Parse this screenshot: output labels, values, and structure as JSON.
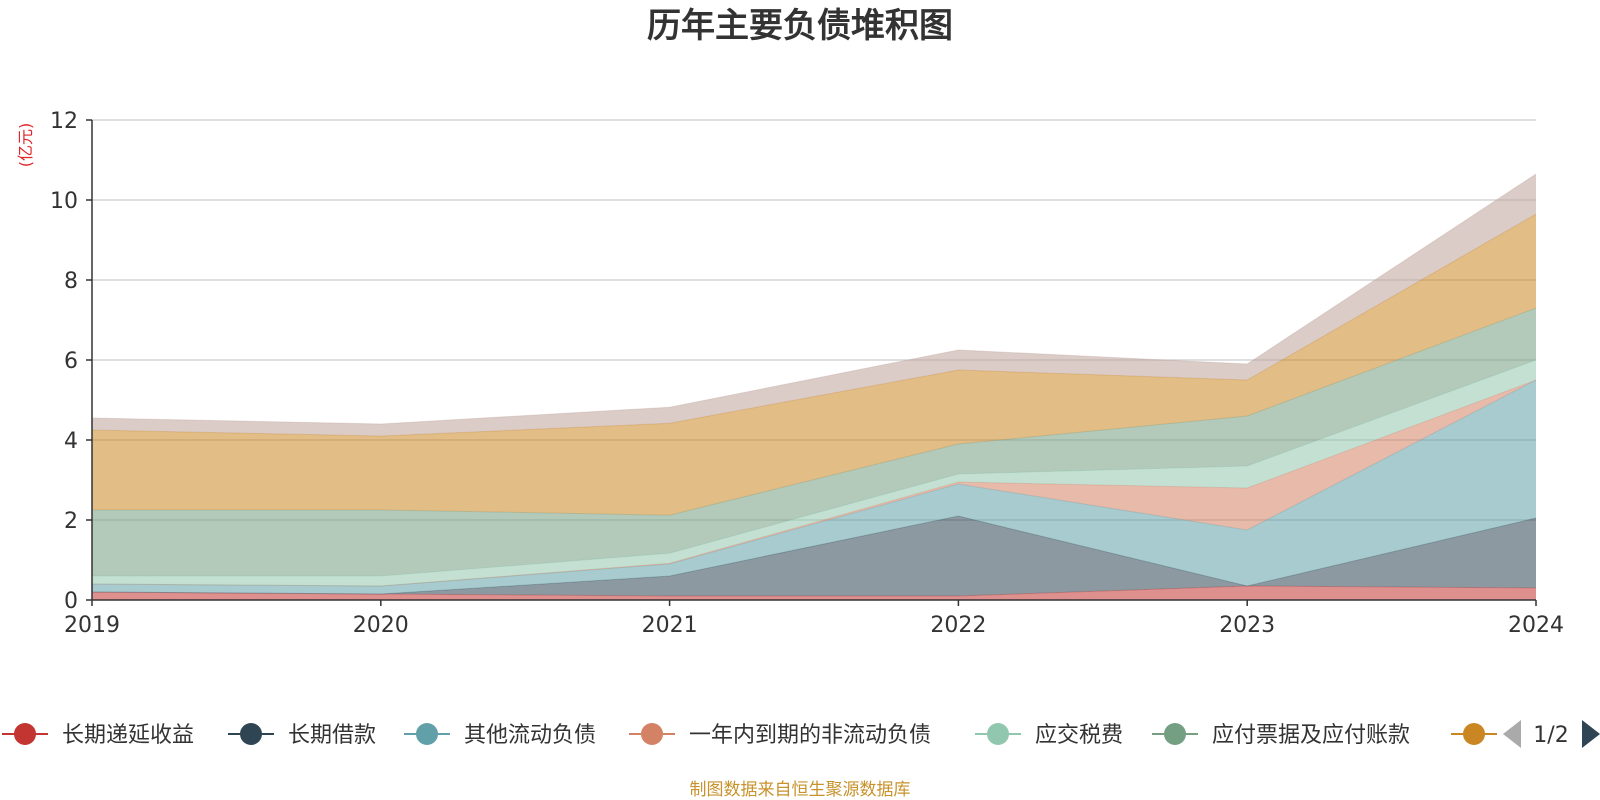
{
  "chart_data": {
    "type": "area",
    "stacked": true,
    "title": "历年主要负债堆积图",
    "ylabel": "(亿元)",
    "xlabel": "",
    "x": [
      "2019",
      "2020",
      "2021",
      "2022",
      "2023",
      "2024"
    ],
    "ylim": [
      0,
      12
    ],
    "yticks": [
      "0",
      "2",
      "4",
      "6",
      "8",
      "10",
      "12"
    ],
    "grid": true,
    "legend_position": "bottom",
    "series": [
      {
        "name": "长期递延收益",
        "color": "#c23531",
        "values": [
          0.2,
          0.15,
          0.1,
          0.1,
          0.35,
          0.3
        ]
      },
      {
        "name": "长期借款",
        "color": "#2f4554",
        "values": [
          0.0,
          0.0,
          0.5,
          2.0,
          0.0,
          1.75
        ]
      },
      {
        "name": "其他流动负债",
        "color": "#61a0a8",
        "values": [
          0.2,
          0.2,
          0.3,
          0.8,
          1.4,
          3.45
        ]
      },
      {
        "name": "一年内到期的非流动负债",
        "color": "#d48265",
        "values": [
          0.0,
          0.0,
          0.02,
          0.05,
          1.05,
          0.0
        ]
      },
      {
        "name": "应交税费",
        "color": "#91c7ae",
        "values": [
          0.2,
          0.25,
          0.25,
          0.2,
          0.55,
          0.5
        ]
      },
      {
        "name": "应付票据及应付账款",
        "color": "#749f83",
        "values": [
          1.65,
          1.65,
          0.95,
          0.75,
          1.25,
          1.3
        ]
      },
      {
        "name": "",
        "color": "#ca8622",
        "values": [
          2.0,
          1.85,
          2.3,
          1.85,
          0.9,
          2.35
        ]
      },
      {
        "name": "",
        "color": "#bda29a",
        "values": [
          0.3,
          0.3,
          0.4,
          0.5,
          0.4,
          1.0
        ]
      }
    ],
    "legend_page": "1/2"
  },
  "footer": {
    "source": "制图数据来自恒生聚源数据库"
  }
}
